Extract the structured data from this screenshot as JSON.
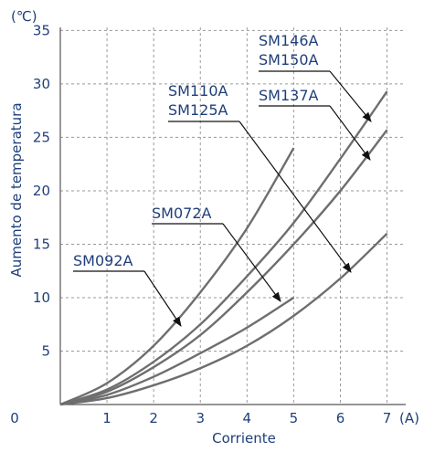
{
  "chart_data": {
    "type": "line",
    "xlabel": "Corriente",
    "ylabel": "Aumento de temperatura",
    "x_unit": "(A)",
    "y_unit": "(℃)",
    "xlim": [
      0,
      7.4
    ],
    "ylim": [
      0,
      37
    ],
    "x_ticks": [
      "0",
      "1",
      "2",
      "3",
      "4",
      "5",
      "6",
      "7"
    ],
    "y_ticks": [
      "5",
      "10",
      "15",
      "20",
      "25",
      "30",
      "35"
    ],
    "grid": true,
    "series": [
      {
        "name": "SM092A",
        "x": [
          0,
          1,
          2,
          3,
          4,
          5
        ],
        "y": [
          0,
          2,
          5.5,
          10.5,
          16.5,
          24
        ]
      },
      {
        "name": "SM110A / SM125A",
        "x": [
          0,
          1,
          2,
          3,
          4,
          5,
          6,
          7
        ],
        "y": [
          0,
          1.4,
          4,
          7.5,
          12,
          17,
          23,
          29.3
        ]
      },
      {
        "name": "SM146A / SM150A",
        "x": [
          0,
          1,
          2,
          3,
          4,
          5,
          6,
          7
        ],
        "y": [
          0,
          1.2,
          3.5,
          6.5,
          10.5,
          15,
          20,
          25.7
        ]
      },
      {
        "name": "SM072A",
        "x": [
          0,
          1,
          2,
          3,
          4,
          5
        ],
        "y": [
          0,
          0.9,
          2.6,
          4.8,
          7.2,
          10
        ]
      },
      {
        "name": "SM137A",
        "x": [
          0,
          1,
          2,
          3,
          4,
          5,
          6,
          7
        ],
        "y": [
          0,
          0.6,
          1.8,
          3.4,
          5.5,
          8.3,
          11.8,
          16
        ]
      }
    ],
    "callouts": [
      {
        "label": "SM146A",
        "series": 2
      },
      {
        "label": "SM150A",
        "series": 2
      },
      {
        "label": "SM110A",
        "series": 1
      },
      {
        "label": "SM125A",
        "series": 1
      },
      {
        "label": "SM137A",
        "series": 4
      },
      {
        "label": "SM072A",
        "series": 3
      },
      {
        "label": "SM092A",
        "series": 0
      }
    ]
  }
}
